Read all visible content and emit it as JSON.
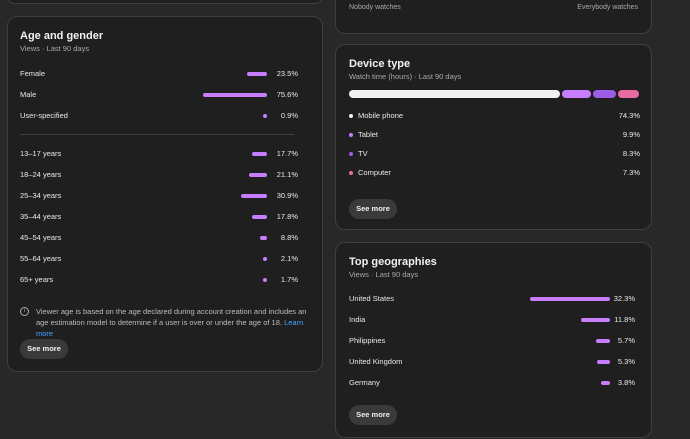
{
  "top_strip": {
    "left_label": "Nobody watches",
    "right_label": "Everybody watches"
  },
  "age_gender": {
    "title": "Age and gender",
    "subtitle": "Views · Last 90 days",
    "gender": [
      {
        "label": "Female",
        "value": "23.5%",
        "pct": 23.5
      },
      {
        "label": "Male",
        "value": "75.6%",
        "pct": 75.6
      },
      {
        "label": "User-specified",
        "value": "0.9%",
        "pct": 0.9
      }
    ],
    "ages": [
      {
        "label": "13–17 years",
        "value": "17.7%",
        "pct": 17.7
      },
      {
        "label": "18–24 years",
        "value": "21.1%",
        "pct": 21.1
      },
      {
        "label": "25–34 years",
        "value": "30.9%",
        "pct": 30.9
      },
      {
        "label": "35–44 years",
        "value": "17.8%",
        "pct": 17.8
      },
      {
        "label": "45–54 years",
        "value": "8.8%",
        "pct": 8.8
      },
      {
        "label": "55–64 years",
        "value": "2.1%",
        "pct": 2.1
      },
      {
        "label": "65+ years",
        "value": "1.7%",
        "pct": 1.7
      }
    ],
    "note": "Viewer age is based on the age declared during account creation and includes an age estimation model to determine if a user is over or under the age of 18.",
    "note_link": "Learn more",
    "see_more": "See more",
    "bar_color": "#c77dff"
  },
  "device_type": {
    "title": "Device type",
    "subtitle": "Watch time (hours) · Last 90 days",
    "devices": [
      {
        "label": "Mobile phone",
        "value": "74.3%",
        "pct": 74.3,
        "color": "#f1f1f1"
      },
      {
        "label": "Tablet",
        "value": "9.9%",
        "pct": 9.9,
        "color": "#c77dff"
      },
      {
        "label": "TV",
        "value": "8.3%",
        "pct": 8.3,
        "color": "#9b5de5"
      },
      {
        "label": "Computer",
        "value": "7.3%",
        "pct": 7.3,
        "color": "#e86ca0"
      }
    ],
    "see_more": "See more"
  },
  "top_geographies": {
    "title": "Top geographies",
    "subtitle": "Views · Last 90 days",
    "countries": [
      {
        "label": "United States",
        "value": "32.3%",
        "pct": 32.3
      },
      {
        "label": "India",
        "value": "11.8%",
        "pct": 11.8
      },
      {
        "label": "Philippines",
        "value": "5.7%",
        "pct": 5.7
      },
      {
        "label": "United Kingdom",
        "value": "5.3%",
        "pct": 5.3
      },
      {
        "label": "Germany",
        "value": "3.8%",
        "pct": 3.8
      }
    ],
    "see_more": "See more"
  }
}
